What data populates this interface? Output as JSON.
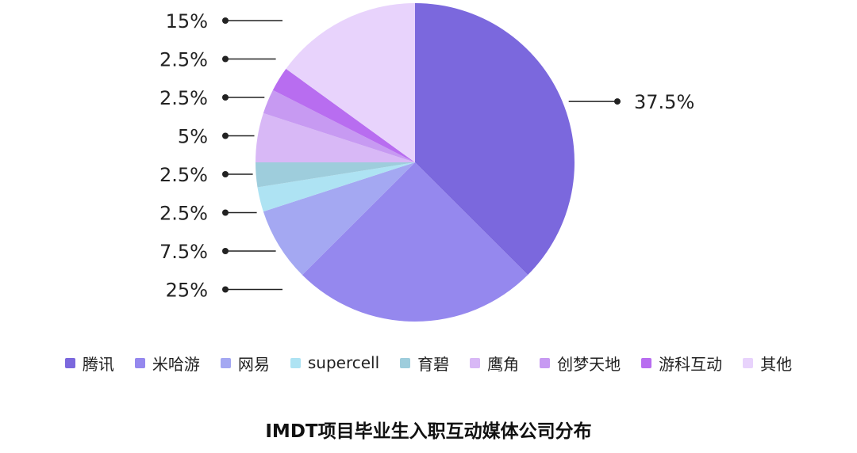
{
  "chart_data": {
    "type": "pie",
    "title": "IMDT项目毕业生入职互动媒体公司分布",
    "categories": [
      "腾讯",
      "米哈游",
      "网易",
      "supercell",
      "育碧",
      "鹰角",
      "创梦天地",
      "游科互动",
      "其他"
    ],
    "values": [
      37.5,
      25,
      7.5,
      2.5,
      2.5,
      5,
      2.5,
      2.5,
      15
    ],
    "value_labels": [
      "37.5%",
      "25%",
      "7.5%",
      "2.5%",
      "2.5%",
      "5%",
      "2.5%",
      "2.5%",
      "15%"
    ],
    "colors": [
      "#7B68DD",
      "#9588EE",
      "#A4A8F2",
      "#AEE3F3",
      "#9ECDDC",
      "#D8B8F6",
      "#C79AF2",
      "#B86DF0",
      "#E8D3FC"
    ],
    "legend_position": "bottom",
    "start_angle": "12 o'clock",
    "direction": "clockwise"
  }
}
